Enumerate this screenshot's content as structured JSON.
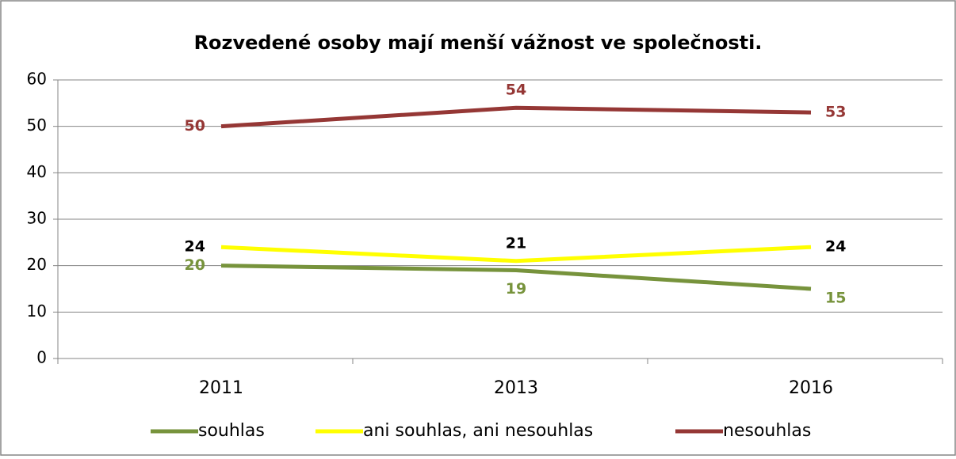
{
  "chart_data": {
    "type": "line",
    "title": "Rozvedené osoby mají menší vážnost ve společnosti.",
    "categories": [
      "2011",
      "2013",
      "2016"
    ],
    "series": [
      {
        "name": "souhlas",
        "color": "#77933c",
        "label_color": "#77933c",
        "values": [
          20,
          19,
          15
        ]
      },
      {
        "name": "ani souhlas, ani nesouhlas",
        "color": "#ffff00",
        "label_color": "#000000",
        "values": [
          24,
          21,
          24
        ]
      },
      {
        "name": "nesouhlas",
        "color": "#953735",
        "label_color": "#953735",
        "values": [
          50,
          54,
          53
        ]
      }
    ],
    "ylim": [
      0,
      60
    ],
    "yticks": [
      0,
      10,
      20,
      30,
      40,
      50,
      60
    ],
    "grid": true,
    "legend": "bottom"
  }
}
